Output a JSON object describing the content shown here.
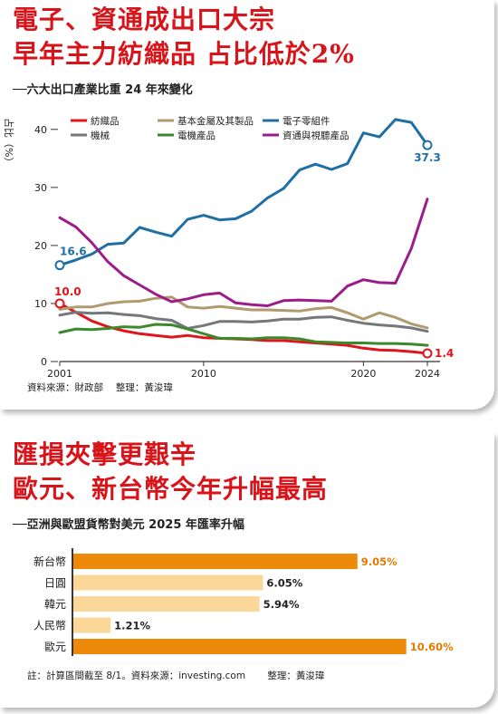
{
  "chart1": {
    "title_line1": "電子、資通成出口大宗",
    "title_line2": "早年主力紡織品 占比低於2%",
    "subtitle": "──六大出口產業比重 24 年來變化",
    "ylabel": "占比（%）",
    "source": "資料來源：財政部　 整理：黃浚瑋",
    "chart_data": {
      "type": "line",
      "x": [
        2001,
        2002,
        2003,
        2004,
        2005,
        2006,
        2007,
        2008,
        2009,
        2010,
        2011,
        2012,
        2013,
        2014,
        2015,
        2016,
        2017,
        2018,
        2019,
        2020,
        2021,
        2022,
        2023,
        2024
      ],
      "xticks": [
        "2001",
        "2010",
        "2020",
        "2024"
      ],
      "yticks": [
        "0",
        "10",
        "20",
        "30",
        "40"
      ],
      "ylim": [
        0,
        42
      ],
      "series": [
        {
          "name": "紡織品",
          "color": "#e0141b",
          "values": [
            10.0,
            8.5,
            7.0,
            6.0,
            5.3,
            4.8,
            4.5,
            4.2,
            4.5,
            4.1,
            4.0,
            3.9,
            3.8,
            3.6,
            3.6,
            3.4,
            3.2,
            3.0,
            2.8,
            2.3,
            2.0,
            1.9,
            1.7,
            1.4
          ]
        },
        {
          "name": "基本金屬及其製品",
          "color": "#b09a6e",
          "values": [
            9.0,
            9.4,
            9.4,
            10.0,
            10.3,
            10.4,
            10.9,
            11.1,
            9.4,
            9.2,
            9.5,
            9.2,
            8.9,
            8.9,
            8.8,
            8.7,
            9.1,
            9.3,
            8.4,
            7.3,
            8.4,
            7.6,
            6.5,
            5.8
          ]
        },
        {
          "name": "電子零組件",
          "color": "#1f6fa5",
          "values": [
            16.6,
            17.5,
            18.5,
            20.2,
            20.4,
            23.1,
            22.3,
            21.6,
            24.5,
            25.2,
            24.4,
            24.6,
            25.9,
            28.2,
            29.8,
            33.0,
            34.0,
            33.1,
            34.1,
            39.4,
            38.7,
            41.7,
            41.2,
            37.3
          ]
        },
        {
          "name": "機械",
          "color": "#76777a",
          "values": [
            8.0,
            8.5,
            8.3,
            8.4,
            8.1,
            7.9,
            7.4,
            7.1,
            5.7,
            6.2,
            6.9,
            6.9,
            6.8,
            7.0,
            7.3,
            7.3,
            7.6,
            7.7,
            7.1,
            6.6,
            6.3,
            6.1,
            5.8,
            5.2
          ]
        },
        {
          "name": "電機產品",
          "color": "#3a8a2c",
          "values": [
            5.0,
            5.6,
            5.5,
            5.7,
            6.0,
            5.9,
            6.4,
            6.3,
            5.6,
            4.8,
            4.0,
            4.0,
            3.9,
            4.1,
            4.1,
            3.9,
            3.4,
            3.3,
            3.2,
            3.2,
            3.1,
            3.1,
            3.0,
            2.8
          ]
        },
        {
          "name": "資通與視聽產品",
          "color": "#9c1c8a",
          "values": [
            24.8,
            23.2,
            20.5,
            17.2,
            14.8,
            13.2,
            11.6,
            10.3,
            10.8,
            11.5,
            11.8,
            10.1,
            9.8,
            9.6,
            10.5,
            10.6,
            10.5,
            10.4,
            13.0,
            14.1,
            13.6,
            13.5,
            19.5,
            28.0
          ]
        }
      ],
      "annotations": [
        {
          "label": "16.6",
          "series": "電子零組件",
          "at": "start"
        },
        {
          "label": "37.3",
          "series": "電子零組件",
          "at": "end"
        },
        {
          "label": "10.0",
          "series": "紡織品",
          "at": "start"
        },
        {
          "label": "1.4",
          "series": "紡織品",
          "at": "end"
        }
      ]
    }
  },
  "chart2": {
    "title_line1": "匯損夾擊更艱辛",
    "title_line2": "歐元、新台幣今年升幅最高",
    "subtitle": "──亞洲與歐盟貨幣對美元 2025 年匯率升幅",
    "footnote": "註：計算區間截至 8/1。資料來源：investing.com　　 整理：黃浚瑋",
    "chart_data": {
      "type": "bar",
      "orientation": "horizontal",
      "categories": [
        "新台幣",
        "日圓",
        "韓元",
        "人民幣",
        "歐元"
      ],
      "values": [
        9.05,
        6.05,
        5.94,
        1.21,
        10.6
      ],
      "labels": [
        "9.05%",
        "6.05%",
        "5.94%",
        "1.21%",
        "10.60%"
      ],
      "colors": [
        "#ee8a0a",
        "#fbd79a",
        "#fbd79a",
        "#fbd79a",
        "#ee8a0a"
      ],
      "label_colors": [
        "#e07a00",
        "#222222",
        "#222222",
        "#222222",
        "#e07a00"
      ],
      "xlim": [
        0,
        11.5
      ]
    }
  }
}
